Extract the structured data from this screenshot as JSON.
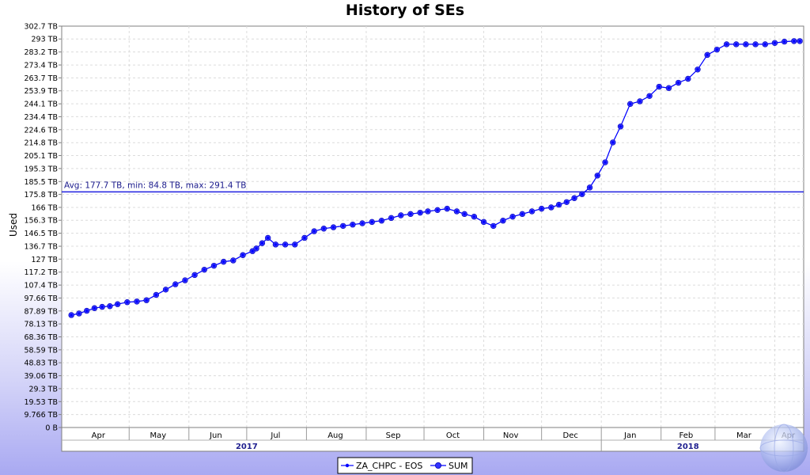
{
  "chart_data": {
    "type": "line",
    "title": "History of SEs",
    "ylabel": "Used",
    "ylim": [
      0,
      302.7
    ],
    "yticks": [
      {
        "v": 0,
        "label": "0 B"
      },
      {
        "v": 9.766,
        "label": "9.766 TB"
      },
      {
        "v": 19.53,
        "label": "19.53 TB"
      },
      {
        "v": 29.3,
        "label": "29.3 TB"
      },
      {
        "v": 39.06,
        "label": "39.06 TB"
      },
      {
        "v": 48.83,
        "label": "48.83 TB"
      },
      {
        "v": 58.59,
        "label": "58.59 TB"
      },
      {
        "v": 68.36,
        "label": "68.36 TB"
      },
      {
        "v": 78.13,
        "label": "78.13 TB"
      },
      {
        "v": 87.89,
        "label": "87.89 TB"
      },
      {
        "v": 97.66,
        "label": "97.66 TB"
      },
      {
        "v": 107.4,
        "label": "107.4 TB"
      },
      {
        "v": 117.2,
        "label": "117.2 TB"
      },
      {
        "v": 127,
        "label": "127 TB"
      },
      {
        "v": 136.7,
        "label": "136.7 TB"
      },
      {
        "v": 146.5,
        "label": "146.5 TB"
      },
      {
        "v": 156.3,
        "label": "156.3 TB"
      },
      {
        "v": 166,
        "label": "166 TB"
      },
      {
        "v": 175.8,
        "label": "175.8 TB"
      },
      {
        "v": 185.5,
        "label": "185.5 TB"
      },
      {
        "v": 195.3,
        "label": "195.3 TB"
      },
      {
        "v": 205.1,
        "label": "205.1 TB"
      },
      {
        "v": 214.8,
        "label": "214.8 TB"
      },
      {
        "v": 224.6,
        "label": "224.6 TB"
      },
      {
        "v": 234.4,
        "label": "234.4 TB"
      },
      {
        "v": 244.1,
        "label": "244.1 TB"
      },
      {
        "v": 253.9,
        "label": "253.9 TB"
      },
      {
        "v": 263.7,
        "label": "263.7 TB"
      },
      {
        "v": 273.4,
        "label": "273.4 TB"
      },
      {
        "v": 283.2,
        "label": "283.2 TB"
      },
      {
        "v": 293,
        "label": "293 TB"
      },
      {
        "v": 302.7,
        "label": "302.7 TB"
      }
    ],
    "xlim": [
      "2017-03-27",
      "2018-04-16"
    ],
    "x_month_labels": [
      {
        "date": "2017-04-15",
        "label": "Apr"
      },
      {
        "date": "2017-05-16",
        "label": "May"
      },
      {
        "date": "2017-06-15",
        "label": "Jun"
      },
      {
        "date": "2017-07-16",
        "label": "Jul"
      },
      {
        "date": "2017-08-16",
        "label": "Aug"
      },
      {
        "date": "2017-09-15",
        "label": "Sep"
      },
      {
        "date": "2017-10-16",
        "label": "Oct"
      },
      {
        "date": "2017-11-15",
        "label": "Nov"
      },
      {
        "date": "2017-12-16",
        "label": "Dec"
      },
      {
        "date": "2018-01-16",
        "label": "Jan"
      },
      {
        "date": "2018-02-14",
        "label": "Feb"
      },
      {
        "date": "2018-03-16",
        "label": "Mar"
      },
      {
        "date": "2018-04-08",
        "label": "Apr"
      }
    ],
    "x_month_boundaries": [
      "2017-05-01",
      "2017-06-01",
      "2017-07-01",
      "2017-08-01",
      "2017-09-01",
      "2017-10-01",
      "2017-11-01",
      "2017-12-01",
      "2018-01-01",
      "2018-02-01",
      "2018-03-01",
      "2018-04-01"
    ],
    "x_year_labels": [
      {
        "date": "2017-07-01",
        "label": "2017"
      },
      {
        "date": "2018-02-15",
        "label": "2018"
      }
    ],
    "x_year_boundary": "2018-01-01",
    "grid": true,
    "legend_position": "bottom-center",
    "annotation": {
      "value": 177.7,
      "label": "Avg: 177.7 TB, min: 84.8 TB, max: 291.4 TB"
    },
    "series": [
      {
        "name": "ZA_CHPC - EOS",
        "color": "#0000ff",
        "x": [
          "2017-04-01",
          "2017-04-05",
          "2017-04-09",
          "2017-04-13",
          "2017-04-17",
          "2017-04-21",
          "2017-04-25",
          "2017-04-30",
          "2017-05-05",
          "2017-05-10",
          "2017-05-15",
          "2017-05-20",
          "2017-05-25",
          "2017-05-30",
          "2017-06-04",
          "2017-06-09",
          "2017-06-14",
          "2017-06-19",
          "2017-06-24",
          "2017-06-29",
          "2017-07-04",
          "2017-07-06",
          "2017-07-09",
          "2017-07-12",
          "2017-07-16",
          "2017-07-21",
          "2017-07-26",
          "2017-07-31",
          "2017-08-05",
          "2017-08-10",
          "2017-08-15",
          "2017-08-20",
          "2017-08-25",
          "2017-08-30",
          "2017-09-04",
          "2017-09-09",
          "2017-09-14",
          "2017-09-19",
          "2017-09-24",
          "2017-09-29",
          "2017-10-03",
          "2017-10-08",
          "2017-10-13",
          "2017-10-18",
          "2017-10-22",
          "2017-10-27",
          "2017-11-01",
          "2017-11-06",
          "2017-11-11",
          "2017-11-16",
          "2017-11-21",
          "2017-11-26",
          "2017-12-01",
          "2017-12-06",
          "2017-12-10",
          "2017-12-14",
          "2017-12-18",
          "2017-12-22",
          "2017-12-26",
          "2017-12-30",
          "2018-01-03",
          "2018-01-07",
          "2018-01-11",
          "2018-01-16",
          "2018-01-21",
          "2018-01-26",
          "2018-01-31",
          "2018-02-05",
          "2018-02-10",
          "2018-02-15",
          "2018-02-20",
          "2018-02-25",
          "2018-03-02",
          "2018-03-07",
          "2018-03-12",
          "2018-03-17",
          "2018-03-22",
          "2018-03-27",
          "2018-04-01",
          "2018-04-06",
          "2018-04-11",
          "2018-04-14"
        ],
        "values": [
          84.8,
          86,
          88,
          90,
          91,
          91.5,
          93,
          94.5,
          95,
          96,
          100,
          104,
          108,
          111,
          115,
          119,
          122,
          125,
          126,
          130,
          133,
          135,
          139,
          143,
          138,
          138,
          138,
          143,
          148,
          150,
          151,
          152,
          153,
          154,
          155,
          156,
          158,
          160,
          161,
          162,
          163,
          164,
          165,
          163,
          161,
          159,
          155,
          152,
          156,
          159,
          161,
          163,
          165,
          166,
          168,
          170,
          173,
          176,
          181,
          190,
          200,
          215,
          227,
          244,
          246,
          250,
          257,
          256,
          260,
          263,
          270,
          281,
          285,
          289,
          289,
          289,
          289,
          289,
          290,
          291,
          291.4,
          291.4
        ]
      },
      {
        "name": "SUM",
        "color": "#0000ff",
        "x": [
          "2017-04-01",
          "2017-04-05",
          "2017-04-09",
          "2017-04-13",
          "2017-04-17",
          "2017-04-21",
          "2017-04-25",
          "2017-04-30",
          "2017-05-05",
          "2017-05-10",
          "2017-05-15",
          "2017-05-20",
          "2017-05-25",
          "2017-05-30",
          "2017-06-04",
          "2017-06-09",
          "2017-06-14",
          "2017-06-19",
          "2017-06-24",
          "2017-06-29",
          "2017-07-04",
          "2017-07-06",
          "2017-07-09",
          "2017-07-12",
          "2017-07-16",
          "2017-07-21",
          "2017-07-26",
          "2017-07-31",
          "2017-08-05",
          "2017-08-10",
          "2017-08-15",
          "2017-08-20",
          "2017-08-25",
          "2017-08-30",
          "2017-09-04",
          "2017-09-09",
          "2017-09-14",
          "2017-09-19",
          "2017-09-24",
          "2017-09-29",
          "2017-10-03",
          "2017-10-08",
          "2017-10-13",
          "2017-10-18",
          "2017-10-22",
          "2017-10-27",
          "2017-11-01",
          "2017-11-06",
          "2017-11-11",
          "2017-11-16",
          "2017-11-21",
          "2017-11-26",
          "2017-12-01",
          "2017-12-06",
          "2017-12-10",
          "2017-12-14",
          "2017-12-18",
          "2017-12-22",
          "2017-12-26",
          "2017-12-30",
          "2018-01-03",
          "2018-01-07",
          "2018-01-11",
          "2018-01-16",
          "2018-01-21",
          "2018-01-26",
          "2018-01-31",
          "2018-02-05",
          "2018-02-10",
          "2018-02-15",
          "2018-02-20",
          "2018-02-25",
          "2018-03-02",
          "2018-03-07",
          "2018-03-12",
          "2018-03-17",
          "2018-03-22",
          "2018-03-27",
          "2018-04-01",
          "2018-04-06",
          "2018-04-11",
          "2018-04-14"
        ],
        "values": [
          84.8,
          86,
          88,
          90,
          91,
          91.5,
          93,
          94.5,
          95,
          96,
          100,
          104,
          108,
          111,
          115,
          119,
          122,
          125,
          126,
          130,
          133,
          135,
          139,
          143,
          138,
          138,
          138,
          143,
          148,
          150,
          151,
          152,
          153,
          154,
          155,
          156,
          158,
          160,
          161,
          162,
          163,
          164,
          165,
          163,
          161,
          159,
          155,
          152,
          156,
          159,
          161,
          163,
          165,
          166,
          168,
          170,
          173,
          176,
          181,
          190,
          200,
          215,
          227,
          244,
          246,
          250,
          257,
          256,
          260,
          263,
          270,
          281,
          285,
          289,
          289,
          289,
          289,
          289,
          290,
          291,
          291.4,
          291.4
        ]
      }
    ]
  }
}
